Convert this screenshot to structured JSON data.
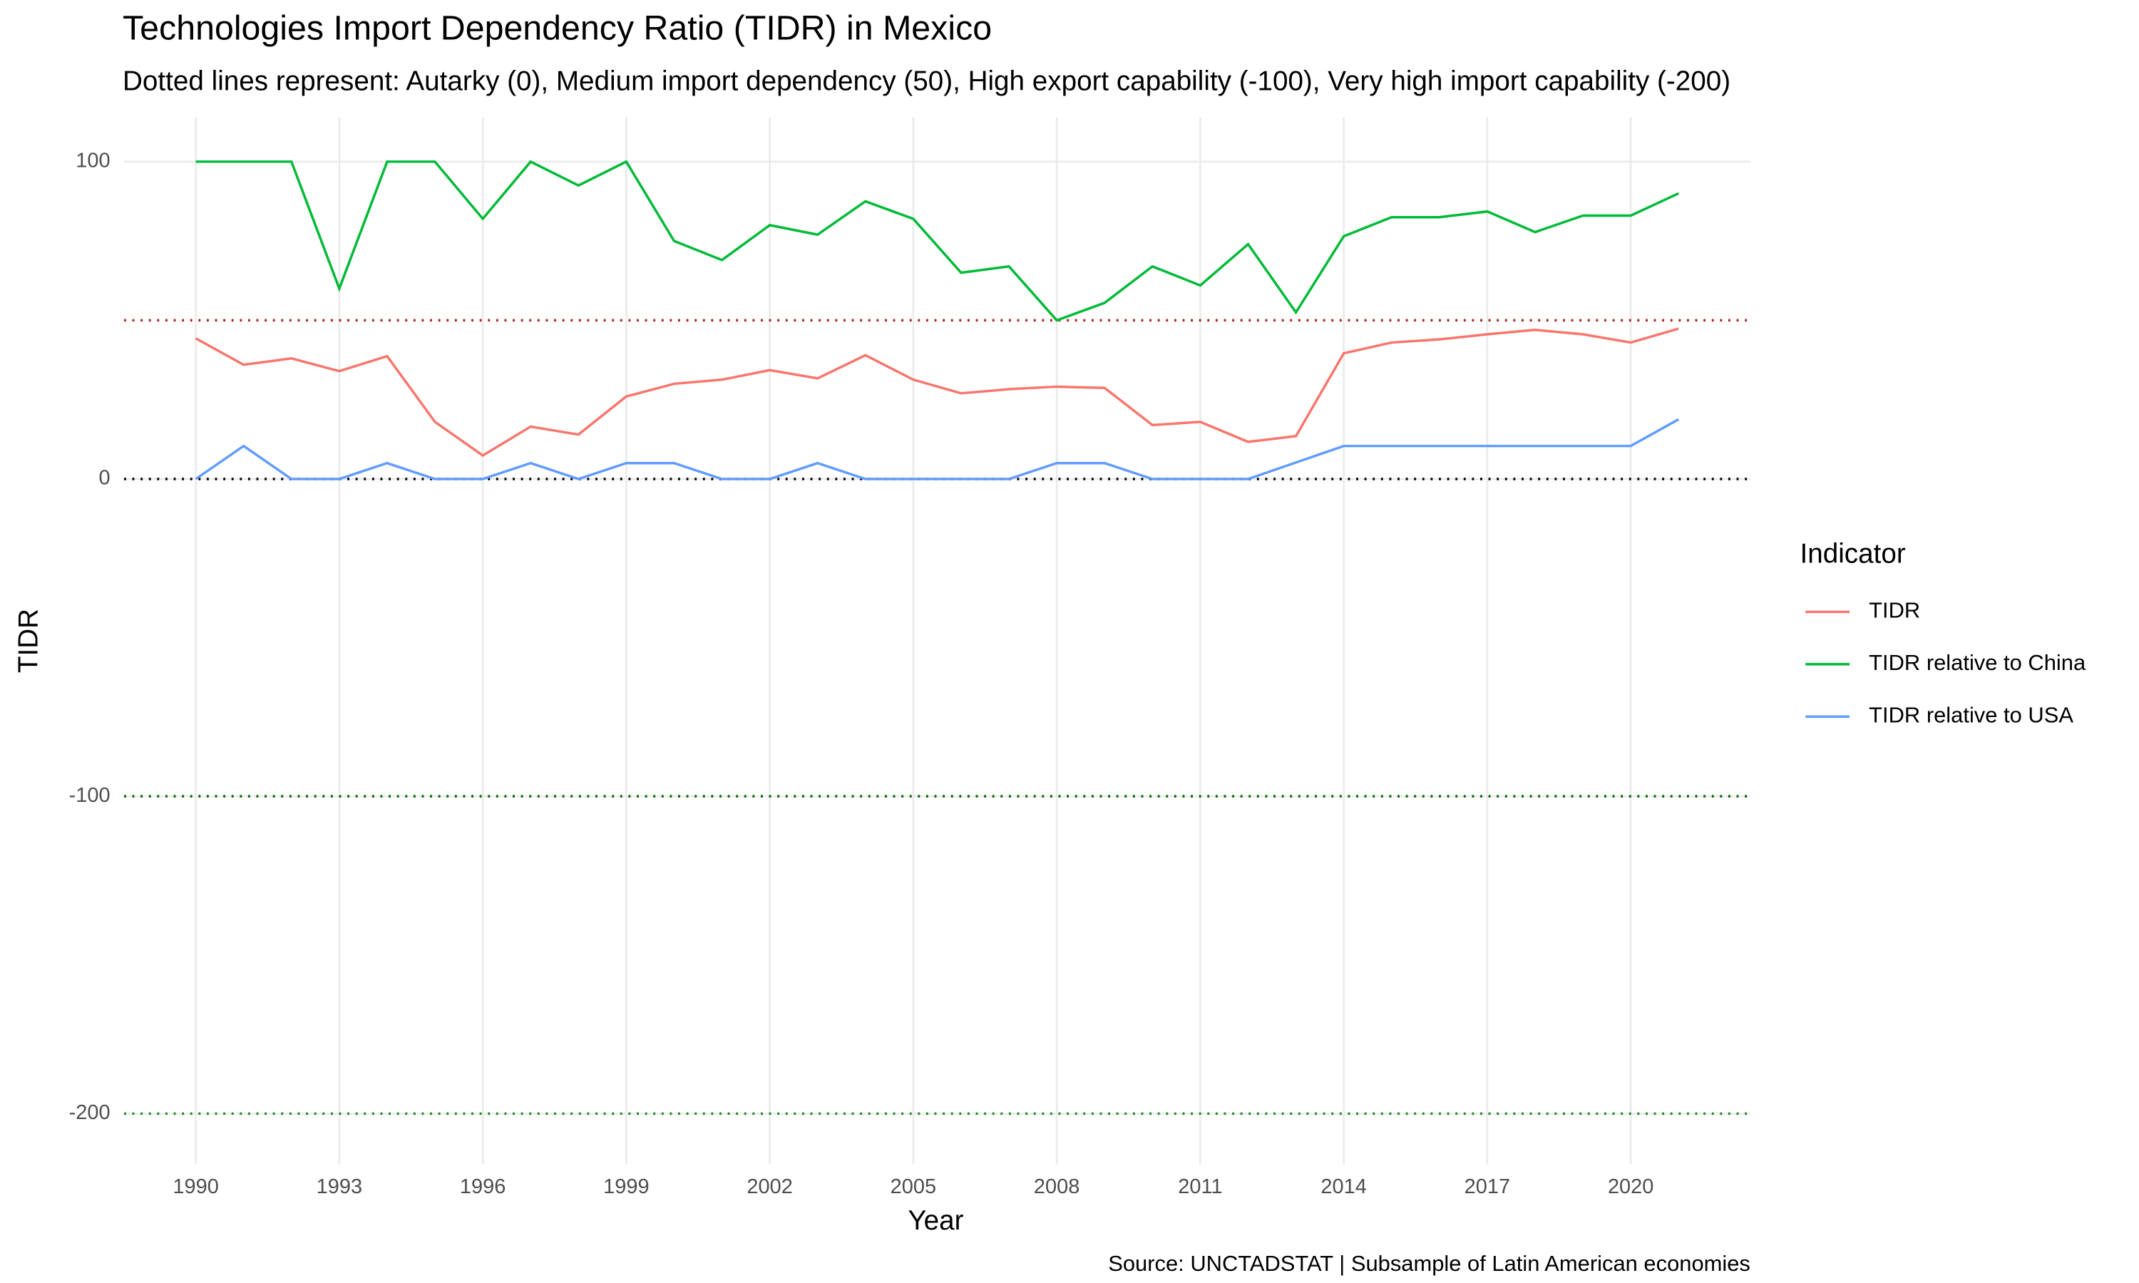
{
  "chart_data": {
    "type": "line",
    "title": "Technologies Import Dependency Ratio (TIDR) in Mexico",
    "subtitle": "Dotted lines represent: Autarky (0), Medium import dependency (50), High export capability (-100), Very high import capability (-200)",
    "x_label": "Year",
    "y_label": "TIDR",
    "caption": "Source: UNCTADSTAT | Subsample of Latin American economies",
    "legend_title": "Indicator",
    "legend_position": "right",
    "grid": true,
    "x": [
      1990,
      1991,
      1992,
      1993,
      1994,
      1995,
      1996,
      1997,
      1998,
      1999,
      2000,
      2001,
      2002,
      2003,
      2004,
      2005,
      2006,
      2007,
      2008,
      2009,
      2010,
      2011,
      2012,
      2013,
      2014,
      2015,
      2016,
      2017,
      2018,
      2019,
      2020,
      2021
    ],
    "series": [
      {
        "name": "TIDR",
        "color": "#f8766d",
        "values": [
          44.3,
          36,
          38,
          34,
          38.7,
          18,
          7.4,
          16.5,
          14,
          26,
          30,
          31.3,
          34.3,
          31.7,
          39,
          31.3,
          27,
          28.3,
          29.1,
          28.7,
          17,
          18,
          11.7,
          13.5,
          39.6,
          43,
          44,
          45.6,
          47,
          45.6,
          43,
          47.4
        ]
      },
      {
        "name": "TIDR relative to China",
        "color": "#00ba38",
        "values": [
          100,
          100,
          100,
          60,
          100,
          100,
          82,
          100,
          92.5,
          100,
          75,
          69,
          80,
          77,
          87.5,
          82,
          65,
          67,
          50,
          55.5,
          67,
          61,
          74,
          52.5,
          76.5,
          82.5,
          82.5,
          84.3,
          77.8,
          83,
          83,
          90
        ]
      },
      {
        "name": "TIDR relative to USA",
        "color": "#619cff",
        "values": [
          0,
          10.4,
          0,
          0,
          5,
          0,
          0,
          5,
          0,
          5,
          5,
          0,
          0,
          5,
          0,
          0,
          0,
          0,
          5,
          5,
          0,
          0,
          0,
          5.2,
          10.4,
          10.4,
          10.4,
          10.4,
          10.4,
          10.4,
          10.4,
          18.8
        ]
      }
    ],
    "reference_lines": [
      {
        "value": 0,
        "color": "#000000"
      },
      {
        "value": 50,
        "color": "#b22222"
      },
      {
        "value": -100,
        "color": "#006400"
      },
      {
        "value": -200,
        "color": "#228b22"
      }
    ],
    "xlim": [
      1988.5,
      2022.5
    ],
    "ylim": [
      -216,
      114
    ],
    "xticks": [
      1990,
      1993,
      1996,
      1999,
      2002,
      2005,
      2008,
      2011,
      2014,
      2017,
      2020
    ],
    "yticks": [
      -200,
      -100,
      0,
      100
    ]
  }
}
